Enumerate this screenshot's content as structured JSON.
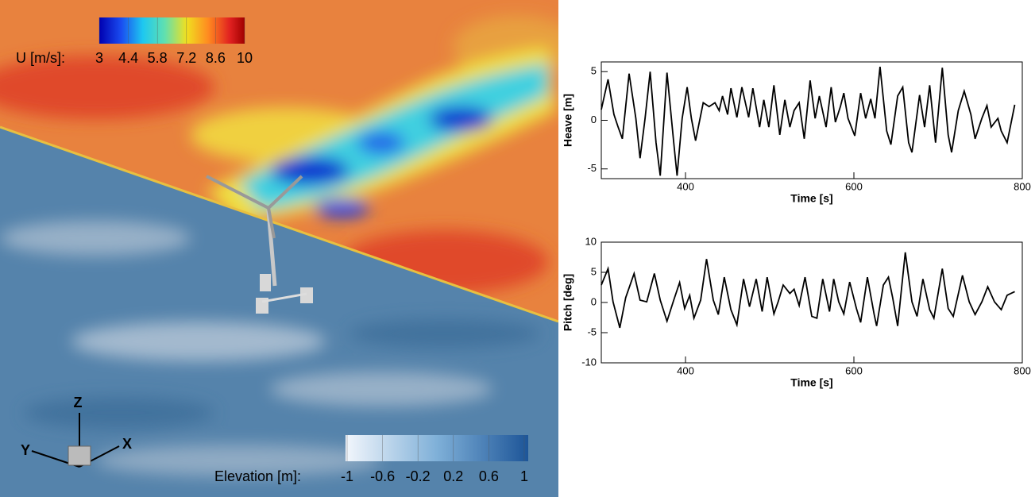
{
  "chart_data": [
    {
      "type": "line",
      "ylabel": "Heave [m]",
      "xlabel": "Time [s]",
      "x": [
        300,
        308,
        315,
        320,
        325,
        333,
        341,
        346,
        352,
        358,
        365,
        370,
        378,
        386,
        390,
        396,
        402,
        407,
        412,
        421,
        428,
        435,
        440,
        444,
        450,
        454,
        461,
        467,
        475,
        480,
        488,
        493,
        499,
        505,
        512,
        518,
        524,
        529,
        535,
        541,
        548,
        554,
        559,
        567,
        573,
        578,
        584,
        588,
        593,
        601,
        608,
        614,
        620,
        625,
        631,
        639,
        644,
        652,
        658,
        665,
        669,
        678,
        684,
        690,
        697,
        705,
        712,
        716,
        724,
        731,
        739,
        744,
        752,
        758,
        763,
        771,
        775,
        782,
        791
      ],
      "series": [
        {
          "color": "#000000",
          "values": [
            1.1,
            4.2,
            0.6,
            -0.7,
            -1.9,
            4.8,
            0.2,
            -3.9,
            0.2,
            5.0,
            -2.3,
            -5.7,
            4.9,
            -2.3,
            -5.7,
            0.2,
            3.4,
            0.2,
            -2.1,
            1.8,
            1.4,
            1.8,
            1.0,
            2.5,
            0.6,
            3.3,
            0.3,
            3.4,
            0.3,
            3.3,
            -0.7,
            2.1,
            -0.7,
            3.6,
            -1.5,
            2.1,
            -0.7,
            1.0,
            1.8,
            -1.9,
            4.1,
            0.2,
            2.5,
            -0.7,
            3.4,
            -0.2,
            1.4,
            2.8,
            0.2,
            -1.6,
            2.8,
            0.2,
            2.2,
            0.2,
            5.5,
            -1.1,
            -2.5,
            2.5,
            3.4,
            -2.3,
            -3.3,
            2.6,
            -0.7,
            3.6,
            -2.3,
            5.4,
            -1.5,
            -3.3,
            1.0,
            3.0,
            0.6,
            -1.9,
            0.2,
            1.5,
            -0.7,
            0.2,
            -1.1,
            -2.3,
            1.6
          ]
        }
      ],
      "xlim": [
        300,
        800
      ],
      "ylim": [
        -6,
        6
      ],
      "xticks": [
        400,
        600,
        800
      ],
      "yticks": [
        -5,
        0,
        5
      ]
    },
    {
      "type": "line",
      "ylabel": "Pitch [deg]",
      "xlabel": "Time [s]",
      "x": [
        300,
        308,
        314,
        322,
        329,
        339,
        346,
        354,
        363,
        370,
        378,
        386,
        393,
        399,
        405,
        410,
        418,
        425,
        433,
        439,
        446,
        454,
        461,
        469,
        476,
        484,
        491,
        497,
        505,
        510,
        516,
        524,
        529,
        535,
        542,
        550,
        556,
        563,
        571,
        576,
        582,
        588,
        595,
        603,
        608,
        616,
        624,
        627,
        635,
        641,
        646,
        652,
        661,
        669,
        675,
        682,
        690,
        695,
        705,
        712,
        718,
        729,
        737,
        744,
        752,
        759,
        767,
        775,
        782,
        791
      ],
      "series": [
        {
          "color": "#000000",
          "values": [
            2.9,
            5.6,
            0.1,
            -4.2,
            0.8,
            4.8,
            0.4,
            0.1,
            4.8,
            0.4,
            -3.1,
            0.4,
            3.3,
            -1.0,
            1.2,
            -2.6,
            0.4,
            7.2,
            0.4,
            -2.0,
            4.2,
            -1.2,
            -3.7,
            3.9,
            -0.7,
            3.9,
            -1.5,
            4.2,
            -1.9,
            0.1,
            2.9,
            1.5,
            2.2,
            -0.5,
            4.2,
            -2.3,
            -2.6,
            3.9,
            -1.5,
            3.9,
            0.1,
            -1.9,
            3.4,
            -1.0,
            -3.3,
            4.2,
            -1.9,
            -3.9,
            2.9,
            4.2,
            0.8,
            -3.9,
            8.3,
            0.1,
            -2.3,
            3.9,
            -1.2,
            -2.6,
            5.6,
            -1.0,
            -2.3,
            4.5,
            0.1,
            -2.0,
            0.1,
            2.6,
            0.1,
            -1.2,
            1.2,
            1.8
          ]
        }
      ],
      "xlim": [
        300,
        800
      ],
      "ylim": [
        -10,
        10
      ],
      "xticks": [
        400,
        600,
        800
      ],
      "yticks": [
        -10,
        -5,
        0,
        5,
        10
      ]
    }
  ],
  "visualization": {
    "velocity_legend": {
      "label": "U [m/s]:",
      "range": [
        3,
        10
      ],
      "ticks": [
        3,
        4.4,
        5.8,
        7.2,
        8.6,
        10
      ]
    },
    "elevation_legend": {
      "label": "Elevation [m]:",
      "range": [
        -1,
        1
      ],
      "ticks": [
        -1,
        -0.6,
        -0.2,
        0.2,
        0.6,
        1
      ]
    },
    "axis_triad": {
      "z": "Z",
      "y": "Y",
      "x": "X"
    }
  }
}
